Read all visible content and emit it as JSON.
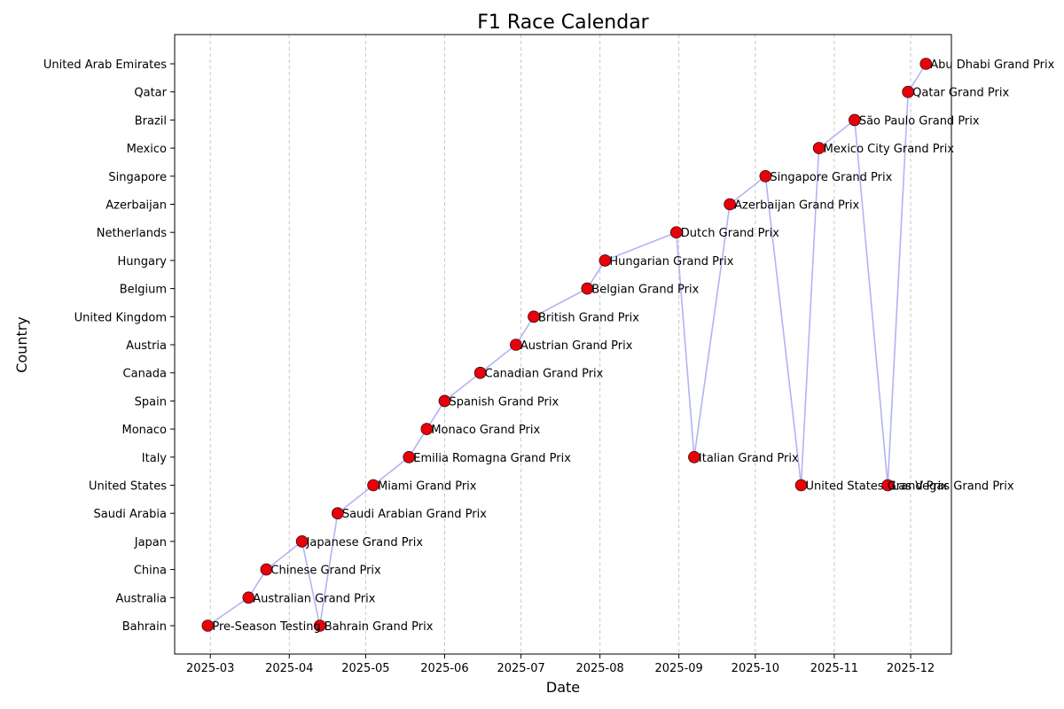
{
  "chart_data": {
    "type": "scatter",
    "title": "F1 Race Calendar",
    "xlabel": "Date",
    "ylabel": "Country",
    "x_ticks": [
      "2025-03",
      "2025-04",
      "2025-05",
      "2025-06",
      "2025-07",
      "2025-08",
      "2025-09",
      "2025-10",
      "2025-11",
      "2025-12"
    ],
    "x_range": [
      "2025-02-15",
      "2025-12-17"
    ],
    "countries": [
      "Bahrain",
      "Australia",
      "China",
      "Japan",
      "Saudi Arabia",
      "United States",
      "Italy",
      "Monaco",
      "Spain",
      "Canada",
      "Austria",
      "United Kingdom",
      "Belgium",
      "Hungary",
      "Netherlands",
      "Azerbaijan",
      "Singapore",
      "Mexico",
      "Brazil",
      "Qatar",
      "United Arab Emirates"
    ],
    "grid": "vertical dashed",
    "line_color": "#b3b3f5",
    "marker_color": "#e8000b",
    "events": [
      {
        "date": "2025-02-28",
        "country": "Bahrain",
        "label": "Pre-Season Testing"
      },
      {
        "date": "2025-03-16",
        "country": "Australia",
        "label": "Australian Grand Prix"
      },
      {
        "date": "2025-03-23",
        "country": "China",
        "label": "Chinese Grand Prix"
      },
      {
        "date": "2025-04-06",
        "country": "Japan",
        "label": "Japanese Grand Prix"
      },
      {
        "date": "2025-04-13",
        "country": "Bahrain",
        "label": "Bahrain Grand Prix"
      },
      {
        "date": "2025-04-20",
        "country": "Saudi Arabia",
        "label": "Saudi Arabian Grand Prix"
      },
      {
        "date": "2025-05-04",
        "country": "United States",
        "label": "Miami Grand Prix"
      },
      {
        "date": "2025-05-18",
        "country": "Italy",
        "label": "Emilia Romagna Grand Prix"
      },
      {
        "date": "2025-05-25",
        "country": "Monaco",
        "label": "Monaco Grand Prix"
      },
      {
        "date": "2025-06-01",
        "country": "Spain",
        "label": "Spanish Grand Prix"
      },
      {
        "date": "2025-06-15",
        "country": "Canada",
        "label": "Canadian Grand Prix"
      },
      {
        "date": "2025-06-29",
        "country": "Austria",
        "label": "Austrian Grand Prix"
      },
      {
        "date": "2025-07-06",
        "country": "United Kingdom",
        "label": "British Grand Prix"
      },
      {
        "date": "2025-07-27",
        "country": "Belgium",
        "label": "Belgian Grand Prix"
      },
      {
        "date": "2025-08-03",
        "country": "Hungary",
        "label": "Hungarian Grand Prix"
      },
      {
        "date": "2025-08-31",
        "country": "Netherlands",
        "label": "Dutch Grand Prix"
      },
      {
        "date": "2025-09-07",
        "country": "Italy",
        "label": "Italian Grand Prix"
      },
      {
        "date": "2025-09-21",
        "country": "Azerbaijan",
        "label": "Azerbaijan Grand Prix"
      },
      {
        "date": "2025-10-05",
        "country": "Singapore",
        "label": "Singapore Grand Prix"
      },
      {
        "date": "2025-10-19",
        "country": "United States",
        "label": "United States Grand Prix"
      },
      {
        "date": "2025-10-26",
        "country": "Mexico",
        "label": "Mexico City Grand Prix"
      },
      {
        "date": "2025-11-09",
        "country": "Brazil",
        "label": "São Paulo Grand Prix"
      },
      {
        "date": "2025-11-22",
        "country": "United States",
        "label": "Las Vegas Grand Prix"
      },
      {
        "date": "2025-11-30",
        "country": "Qatar",
        "label": "Qatar Grand Prix"
      },
      {
        "date": "2025-12-07",
        "country": "United Arab Emirates",
        "label": "Abu Dhabi Grand Prix"
      }
    ]
  }
}
